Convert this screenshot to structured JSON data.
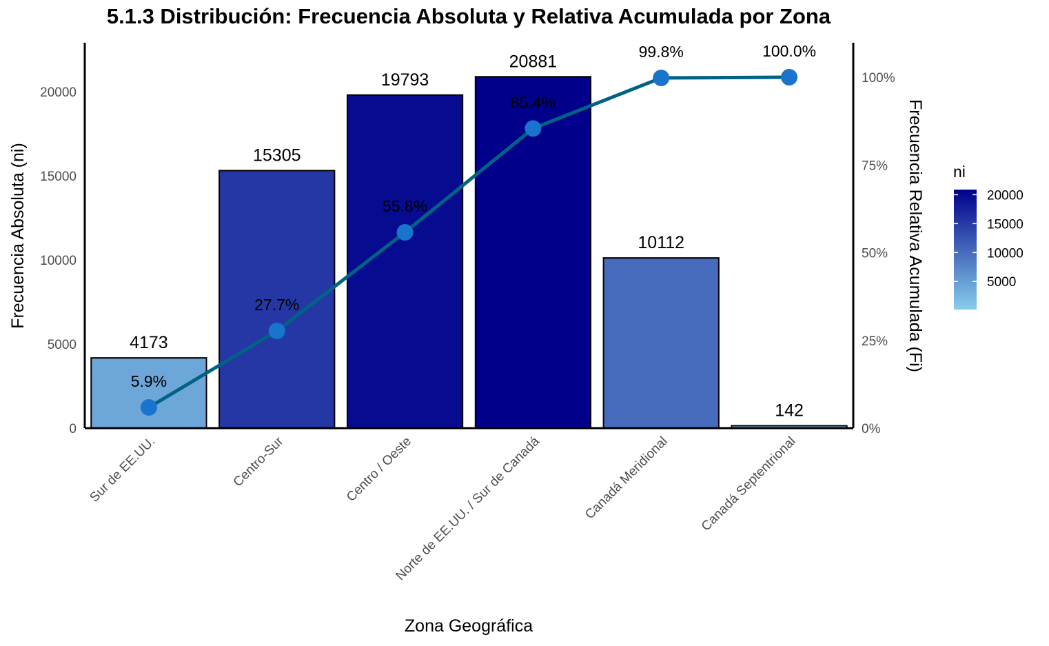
{
  "chart_data": {
    "type": "bar",
    "title": "5.1.3 Distribución: Frecuencia Absoluta y Relativa Acumulada por Zona",
    "xlabel": "Zona Geográfica",
    "ylabel": "Frecuencia Absoluta (ni)",
    "y2label": "Frecuencia Relativa Acumulada (Fi)",
    "categories": [
      "Sur de EE.UU.",
      "Centro-Sur",
      "Centro / Oeste",
      "Norte de EE.UU. / Sur de Canadá",
      "Canadá Meridional",
      "Canadá Septentrional"
    ],
    "values": [
      4173,
      15305,
      19793,
      20881,
      10112,
      142
    ],
    "value_labels": [
      "4173",
      "15305",
      "19793",
      "20881",
      "10112",
      "142"
    ],
    "cumulative_pct": [
      5.9,
      27.7,
      55.8,
      85.4,
      99.8,
      100.0
    ],
    "cumulative_labels": [
      "5.9%",
      "27.7%",
      "55.8%",
      "85.4%",
      "99.8%",
      "100.0%"
    ],
    "ylim": [
      0,
      22900
    ],
    "yticks": [
      0,
      5000,
      10000,
      15000,
      20000
    ],
    "ytick_labels": [
      "0",
      "5000",
      "10000",
      "15000",
      "20000"
    ],
    "y2lim": [
      0,
      100
    ],
    "y2ticks": [
      0,
      25,
      50,
      75,
      100
    ],
    "y2tick_labels": [
      "0%",
      "25%",
      "50%",
      "75%",
      "100%"
    ],
    "grid": false,
    "legend": {
      "title": "ni",
      "placement": "right",
      "min": 142,
      "max": 20881,
      "ticks": [
        5000,
        10000,
        15000,
        20000
      ],
      "tick_labels": [
        "5000",
        "10000",
        "15000",
        "20000"
      ],
      "color_low": "#87CEEB",
      "color_high": "#00008B"
    },
    "line_color": "#006385",
    "point_color": "#1874CD"
  }
}
